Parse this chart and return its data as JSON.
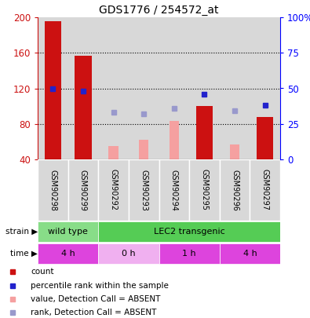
{
  "title": "GDS1776 / 254572_at",
  "samples": [
    "GSM90298",
    "GSM90299",
    "GSM90292",
    "GSM90293",
    "GSM90294",
    "GSM90295",
    "GSM90296",
    "GSM90297"
  ],
  "count_values": [
    196,
    157,
    null,
    null,
    null,
    100,
    null,
    88
  ],
  "count_absent": [
    null,
    null,
    55,
    62,
    83,
    null,
    57,
    null
  ],
  "rank_values": [
    50,
    48,
    null,
    null,
    null,
    46,
    null,
    38
  ],
  "rank_absent": [
    null,
    null,
    33,
    32,
    36,
    null,
    34,
    null
  ],
  "ylim_left": [
    40,
    200
  ],
  "ylim_right": [
    0,
    100
  ],
  "yticks_left": [
    40,
    80,
    120,
    160,
    200
  ],
  "ytick_labels_left": [
    "40",
    "80",
    "120",
    "160",
    "200"
  ],
  "yticks_right_vals": [
    0,
    25,
    50,
    75,
    100
  ],
  "ytick_labels_right": [
    "0",
    "25",
    "50",
    "75",
    "100%"
  ],
  "gridlines": [
    80,
    120,
    160
  ],
  "strain_groups": [
    {
      "label": "wild type",
      "start": 0,
      "end": 1,
      "color": "#88dd88"
    },
    {
      "label": "LEC2 transgenic",
      "start": 2,
      "end": 7,
      "color": "#55cc55"
    }
  ],
  "time_groups": [
    {
      "label": "4 h",
      "start": 0,
      "end": 1,
      "color": "#dd44dd"
    },
    {
      "label": "0 h",
      "start": 2,
      "end": 3,
      "color": "#f0b0f0"
    },
    {
      "label": "1 h",
      "start": 4,
      "end": 5,
      "color": "#dd44dd"
    },
    {
      "label": "4 h",
      "start": 6,
      "end": 7,
      "color": "#dd44dd"
    }
  ],
  "bar_width": 0.55,
  "absent_bar_width": 0.32,
  "color_red": "#cc1111",
  "color_red_absent": "#f5a0a0",
  "color_blue": "#2222cc",
  "color_blue_absent": "#9999cc",
  "bg_col": "#d8d8d8",
  "bg_white": "#ffffff",
  "legend_items": [
    {
      "color": "#cc1111",
      "label": "count"
    },
    {
      "color": "#2222cc",
      "label": "percentile rank within the sample"
    },
    {
      "color": "#f5a0a0",
      "label": "value, Detection Call = ABSENT"
    },
    {
      "color": "#9999cc",
      "label": "rank, Detection Call = ABSENT"
    }
  ]
}
